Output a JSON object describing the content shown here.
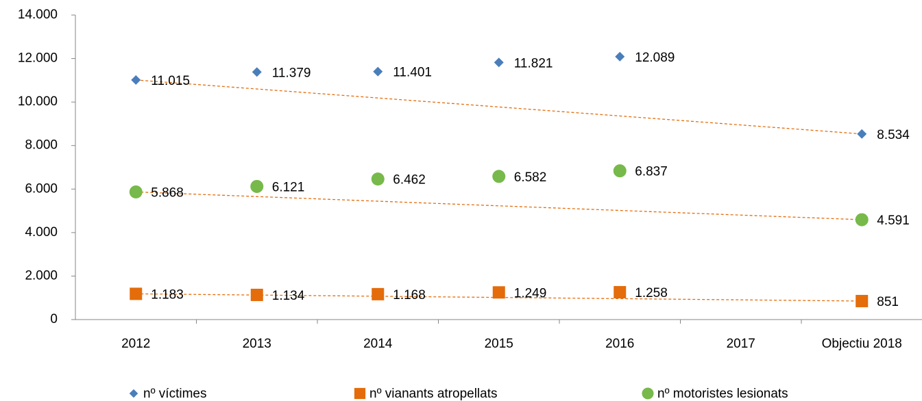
{
  "chart_data": {
    "type": "scatter",
    "categories": [
      "2012",
      "2013",
      "2014",
      "2015",
      "2016",
      "2017",
      "Objectiu 2018"
    ],
    "ylim": [
      0,
      14000
    ],
    "yticks": [
      0,
      {
        "value": 2000,
        "label": "2.000"
      },
      {
        "value": 4000,
        "label": "4.000"
      },
      {
        "value": 6000,
        "label": "6.000"
      },
      {
        "value": 8000,
        "label": "8.000"
      },
      {
        "value": 10000,
        "label": "10.000"
      },
      {
        "value": 12000,
        "label": "12.000"
      },
      {
        "value": 14000,
        "label": "14.000"
      }
    ],
    "trendline_color": "#e46c0a",
    "series": [
      {
        "name": "nº víctimes",
        "color": "#4a7ebb",
        "marker": "diamond",
        "values": [
          11015,
          11379,
          11401,
          11821,
          12089,
          null,
          8534
        ],
        "value_labels": [
          "11.015",
          "11.379",
          "11.401",
          "11.821",
          "12.089",
          null,
          "8.534"
        ]
      },
      {
        "name": "nº vianants atropellats",
        "color": "#e46c0a",
        "marker": "square",
        "values": [
          1183,
          1134,
          1168,
          1249,
          1258,
          null,
          851
        ],
        "value_labels": [
          "1.183",
          "1.134",
          "1.168",
          "1.249",
          "1.258",
          null,
          "851"
        ]
      },
      {
        "name": "nº motoristes lesionats",
        "color": "#77b94a",
        "marker": "circle",
        "values": [
          5868,
          6121,
          6462,
          6582,
          6837,
          null,
          4591
        ],
        "value_labels": [
          "5.868",
          "6.121",
          "6.462",
          "6.582",
          "6.837",
          null,
          "4.591"
        ]
      }
    ]
  }
}
